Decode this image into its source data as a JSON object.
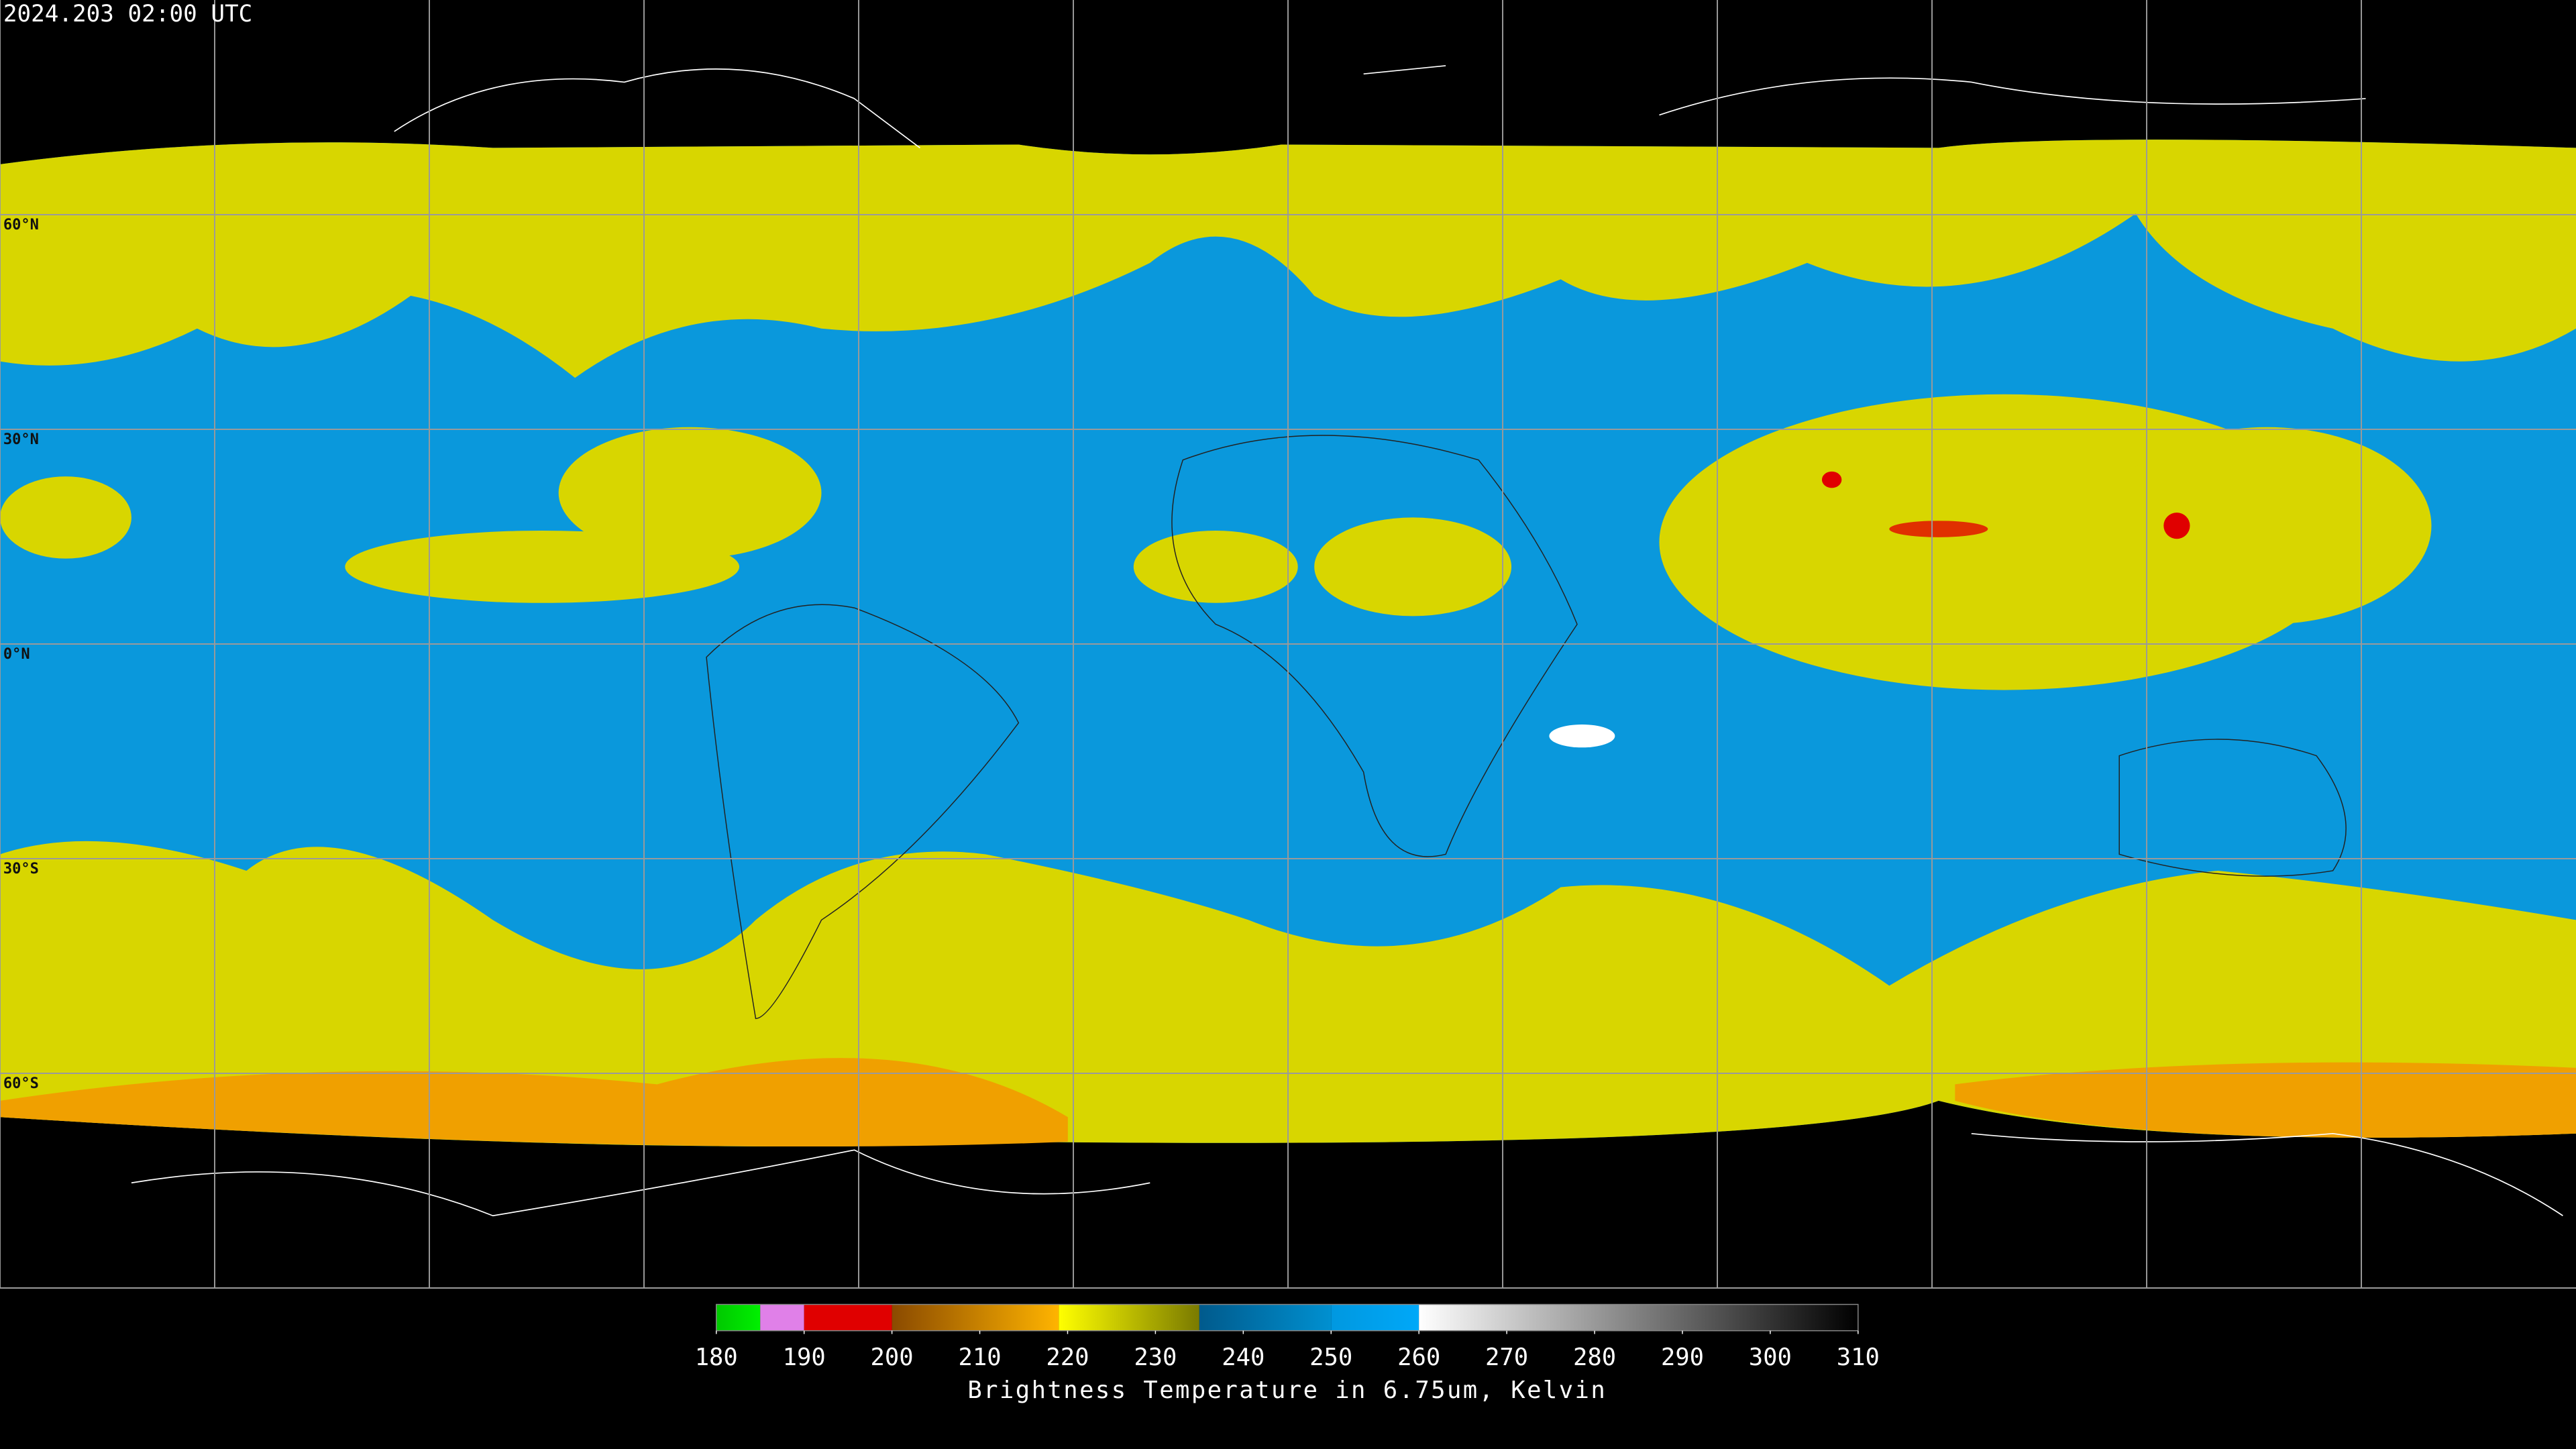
{
  "timestamp": "2024.203 02:00 UTC",
  "latitudes": [
    {
      "value": 60,
      "label": "60°N"
    },
    {
      "value": 30,
      "label": "30°N"
    },
    {
      "value": 0,
      "label": "0°N"
    },
    {
      "value": -30,
      "label": "30°S"
    },
    {
      "value": -60,
      "label": "60°S"
    }
  ],
  "colorbar": {
    "label": "Brightness Temperature in 6.75um, Kelvin",
    "lim": [
      180,
      310
    ],
    "ticks": [
      180,
      190,
      200,
      210,
      220,
      230,
      240,
      250,
      260,
      270,
      280,
      290,
      300,
      310
    ],
    "segments": [
      {
        "from": 180,
        "to": 185,
        "colors": [
          "#00c800",
          "#00f000"
        ]
      },
      {
        "from": 185,
        "to": 190,
        "colors": [
          "#e080e8",
          "#e080e8"
        ]
      },
      {
        "from": 190,
        "to": 200,
        "colors": [
          "#e00000",
          "#e00000"
        ]
      },
      {
        "from": 200,
        "to": 219,
        "colors": [
          "#8a4a00",
          "#ffb400"
        ]
      },
      {
        "from": 219,
        "to": 235,
        "colors": [
          "#ffff00",
          "#7a7a00"
        ]
      },
      {
        "from": 235,
        "to": 250,
        "colors": [
          "#005a8c",
          "#0090d0"
        ]
      },
      {
        "from": 250,
        "to": 260,
        "colors": [
          "#0098e0",
          "#00a8f8"
        ]
      },
      {
        "from": 260,
        "to": 310,
        "colors": [
          "#ffffff",
          "#000000"
        ]
      }
    ]
  }
}
